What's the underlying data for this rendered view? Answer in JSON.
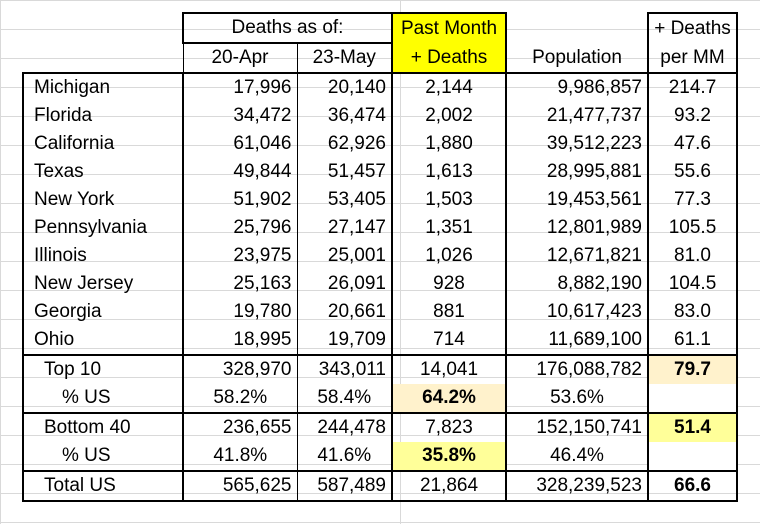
{
  "header": {
    "deaths_as_of": "Deaths as of:",
    "past_month_line1": "Past Month",
    "past_month_line2": "+ Deaths",
    "plus_deaths": "+ Deaths",
    "date1": "20-Apr",
    "date2": "23-May",
    "population": "Population",
    "per_mm": "per MM"
  },
  "states": [
    {
      "name": "Michigan",
      "apr": "17,996",
      "may": "20,140",
      "delta": "2,144",
      "pop": "9,986,857",
      "per_mm": "214.7"
    },
    {
      "name": "Florida",
      "apr": "34,472",
      "may": "36,474",
      "delta": "2,002",
      "pop": "21,477,737",
      "per_mm": "93.2"
    },
    {
      "name": "California",
      "apr": "61,046",
      "may": "62,926",
      "delta": "1,880",
      "pop": "39,512,223",
      "per_mm": "47.6"
    },
    {
      "name": "Texas",
      "apr": "49,844",
      "may": "51,457",
      "delta": "1,613",
      "pop": "28,995,881",
      "per_mm": "55.6"
    },
    {
      "name": "New York",
      "apr": "51,902",
      "may": "53,405",
      "delta": "1,503",
      "pop": "19,453,561",
      "per_mm": "77.3"
    },
    {
      "name": "Pennsylvania",
      "apr": "25,796",
      "may": "27,147",
      "delta": "1,351",
      "pop": "12,801,989",
      "per_mm": "105.5"
    },
    {
      "name": "Illinois",
      "apr": "23,975",
      "may": "25,001",
      "delta": "1,026",
      "pop": "12,671,821",
      "per_mm": "81.0"
    },
    {
      "name": "New Jersey",
      "apr": "25,163",
      "may": "26,091",
      "delta": "928",
      "pop": "8,882,190",
      "per_mm": "104.5"
    },
    {
      "name": "Georgia",
      "apr": "19,780",
      "may": "20,661",
      "delta": "881",
      "pop": "10,617,423",
      "per_mm": "83.0"
    },
    {
      "name": "Ohio",
      "apr": "18,995",
      "may": "19,709",
      "delta": "714",
      "pop": "11,689,100",
      "per_mm": "61.1"
    }
  ],
  "top10": {
    "name": "Top 10",
    "apr": "328,970",
    "may": "343,011",
    "delta": "14,041",
    "pop": "176,088,782",
    "per_mm": "79.7"
  },
  "top10_pct": {
    "name": "% US",
    "apr": "58.2%",
    "may": "58.4%",
    "delta": "64.2%",
    "pop": "53.6%"
  },
  "bottom40": {
    "name": "Bottom 40",
    "apr": "236,655",
    "may": "244,478",
    "delta": "7,823",
    "pop": "152,150,741",
    "per_mm": "51.4"
  },
  "bottom40_pct": {
    "name": "% US",
    "apr": "41.8%",
    "may": "41.6%",
    "delta": "35.8%",
    "pop": "46.4%"
  },
  "total": {
    "name": "Total US",
    "apr": "565,625",
    "may": "587,489",
    "delta": "21,864",
    "pop": "328,239,523",
    "per_mm": "66.6"
  },
  "colors": {
    "highlight_yellow": "#ffff00",
    "light_yellow": "#ffff99",
    "peach": "#fff2cc"
  }
}
